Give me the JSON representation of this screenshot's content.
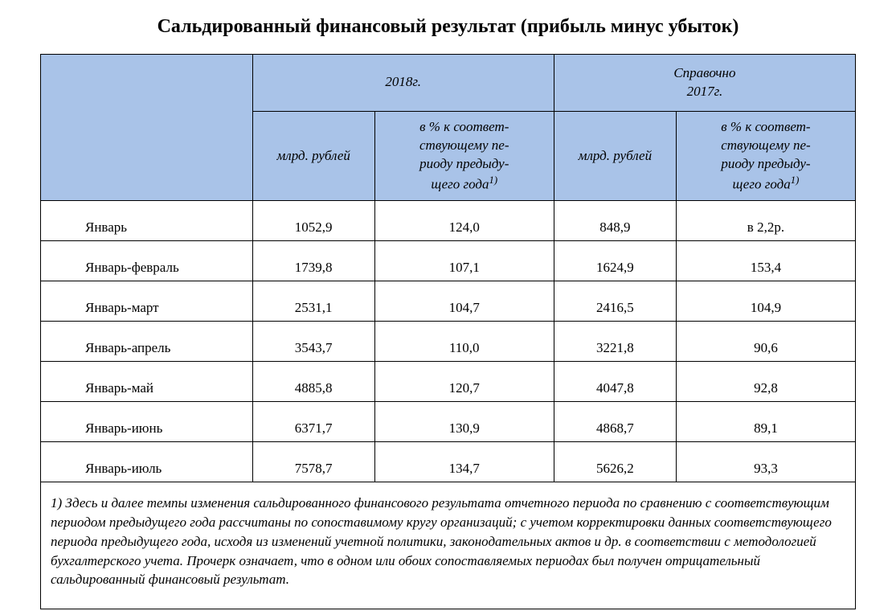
{
  "title": "Сальдированный финансовый результат (прибыль минус убыток)",
  "table": {
    "header": {
      "year_main": "2018г.",
      "year_ref_line1": "Справочно",
      "year_ref_line2": "2017г.",
      "sub_rub": "млрд. рублей",
      "sub_pct_l1": "в % к соответ-",
      "sub_pct_l2": "ствующему пе-",
      "sub_pct_l3": "риоду предыду-",
      "sub_pct_l4": "щего года",
      "sup1": "1)"
    },
    "rows": [
      {
        "label": "Январь",
        "c1": "1052,9",
        "c2": "124,0",
        "c3": "848,9",
        "c4": "в 2,2р."
      },
      {
        "label": "Январь-февраль",
        "c1": "1739,8",
        "c2": "107,1",
        "c3": "1624,9",
        "c4": "153,4"
      },
      {
        "label": "Январь-март",
        "c1": "2531,1",
        "c2": "104,7",
        "c3": "2416,5",
        "c4": "104,9"
      },
      {
        "label": "Январь-апрель",
        "c1": "3543,7",
        "c2": "110,0",
        "c3": "3221,8",
        "c4": "90,6"
      },
      {
        "label": "Январь-май",
        "c1": "4885,8",
        "c2": "120,7",
        "c3": "4047,8",
        "c4": "92,8"
      },
      {
        "label": "Январь-июнь",
        "c1": "6371,7",
        "c2": "130,9",
        "c3": "4868,7",
        "c4": "89,1"
      },
      {
        "label": "Январь-июль",
        "c1": "7578,7",
        "c2": "134,7",
        "c3": "5626,2",
        "c4": "93,3"
      }
    ],
    "footnote": "1) Здесь и далее темпы изменения сальдированного финансового результата отчетного периода по сравнению с соответствующим периодом предыдущего года рассчитаны по сопоставимому кругу организаций; с учетом корректировки данных соответствующего периода предыдущего года, исходя из изменений учетной политики, законодательных актов и др. в соответствии с методологией бухгалтерского учета. Прочерк означает, что в одном или обоих сопоставляемых периодах был получен отрицательный сальдированный финансовый результат."
  },
  "style": {
    "header_bg": "#a9c3e8",
    "border_color": "#000000",
    "background_color": "#ffffff",
    "text_color": "#000000",
    "title_fontsize": 24,
    "body_fontsize": 17,
    "font_family": "Times New Roman"
  }
}
